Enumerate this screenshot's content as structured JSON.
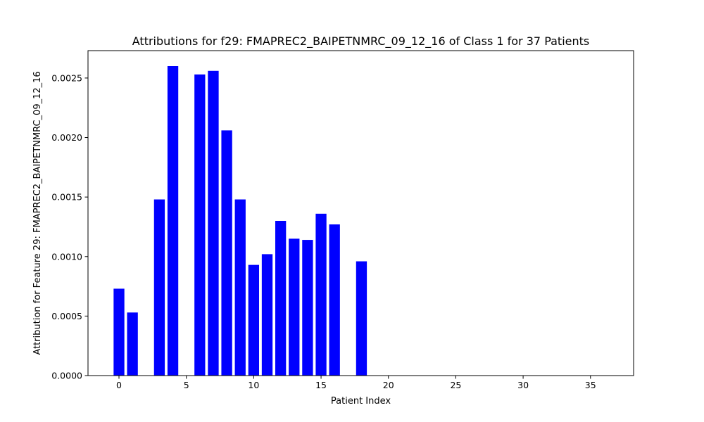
{
  "chart_data": {
    "type": "bar",
    "title": "Attributions for f29: FMAPREC2_BAIPETNMRC_09_12_16 of Class 1 for 37 Patients",
    "xlabel": "Patient Index",
    "ylabel": "Attribution for Feature 29: FMAPREC2_BAIPETNMRC_09_12_16",
    "x": [
      0,
      1,
      2,
      3,
      4,
      5,
      6,
      7,
      8,
      9,
      10,
      11,
      12,
      13,
      14,
      15,
      16,
      17,
      18,
      19,
      20,
      21,
      22,
      23,
      24,
      25,
      26,
      27,
      28,
      29,
      30,
      31,
      32,
      33,
      34,
      35,
      36
    ],
    "values": [
      0.00073,
      0.00053,
      0,
      0.00148,
      0.0026,
      0,
      0.00253,
      0.00256,
      0.00206,
      0.00148,
      0.00093,
      0.00102,
      0.0013,
      0.00115,
      0.00114,
      0.00136,
      0.00127,
      0,
      0.00096,
      0,
      0,
      0,
      0,
      0,
      0,
      0,
      0,
      0,
      0,
      0,
      0,
      0,
      0,
      0,
      0,
      0,
      0
    ],
    "xlim": [
      -2.3,
      38.2
    ],
    "ylim": [
      0,
      0.00273
    ],
    "xticks": [
      0,
      5,
      10,
      15,
      20,
      25,
      30,
      35
    ],
    "xtick_labels": [
      "0",
      "5",
      "10",
      "15",
      "20",
      "25",
      "30",
      "35"
    ],
    "yticks": [
      0,
      0.0005,
      0.001,
      0.0015,
      0.002,
      0.0025
    ],
    "ytick_labels": [
      "0.0000",
      "0.0005",
      "0.0010",
      "0.0015",
      "0.0020",
      "0.0025"
    ],
    "bar_width": 0.8,
    "bar_color": "#0000ff",
    "grid": false,
    "legend": "none"
  }
}
